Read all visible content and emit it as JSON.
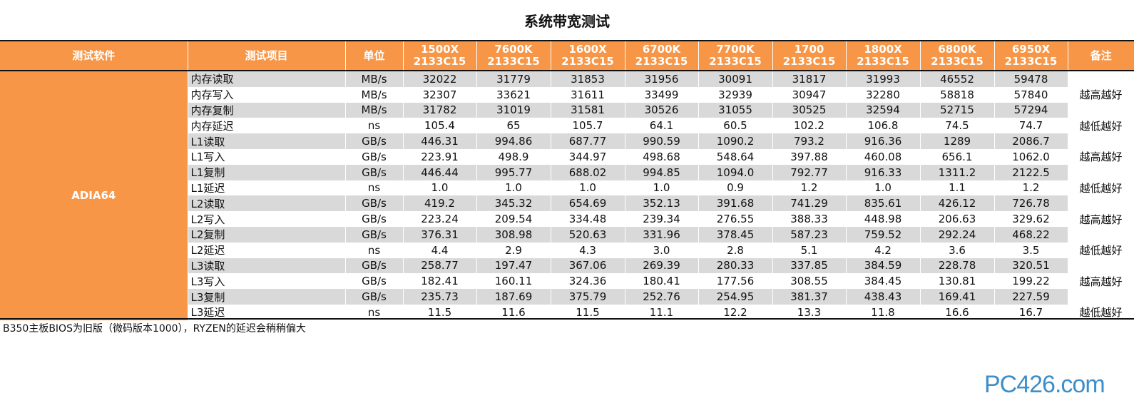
{
  "title": "系统带宽测试",
  "header": {
    "software": "测试软件",
    "item": "测试项目",
    "unit": "单位",
    "note": "备注",
    "cpus": [
      {
        "name": "1500X",
        "mem": "2133C15"
      },
      {
        "name": "7600K",
        "mem": "2133C15"
      },
      {
        "name": "1600X",
        "mem": "2133C15"
      },
      {
        "name": "6700K",
        "mem": "2133C15"
      },
      {
        "name": "7700K",
        "mem": "2133C15"
      },
      {
        "name": "1700",
        "mem": "2133C15"
      },
      {
        "name": "1800X",
        "mem": "2133C15"
      },
      {
        "name": "6800K",
        "mem": "2133C15"
      },
      {
        "name": "6950X",
        "mem": "2133C15"
      }
    ]
  },
  "software_name": "ADIA64",
  "rows": [
    {
      "item": "内存读取",
      "unit": "MB/s",
      "values": [
        "32022",
        "31779",
        "31853",
        "31956",
        "30091",
        "31817",
        "31993",
        "46552",
        "59478"
      ]
    },
    {
      "item": "内存写入",
      "unit": "MB/s",
      "values": [
        "32307",
        "33621",
        "31611",
        "33499",
        "32939",
        "30947",
        "32280",
        "58818",
        "57840"
      ]
    },
    {
      "item": "内存复制",
      "unit": "MB/s",
      "values": [
        "31782",
        "31019",
        "31581",
        "30526",
        "31055",
        "30525",
        "32594",
        "52715",
        "57294"
      ]
    },
    {
      "item": "内存延迟",
      "unit": "ns",
      "values": [
        "105.4",
        "65",
        "105.7",
        "64.1",
        "60.5",
        "102.2",
        "106.8",
        "74.5",
        "74.7"
      ]
    },
    {
      "item": "L1读取",
      "unit": "GB/s",
      "values": [
        "446.31",
        "994.86",
        "687.77",
        "990.59",
        "1090.2",
        "793.2",
        "916.36",
        "1289",
        "2086.7"
      ]
    },
    {
      "item": "L1写入",
      "unit": "GB/s",
      "values": [
        "223.91",
        "498.9",
        "344.97",
        "498.68",
        "548.64",
        "397.88",
        "460.08",
        "656.1",
        "1062.0"
      ]
    },
    {
      "item": "L1复制",
      "unit": "GB/s",
      "values": [
        "446.44",
        "995.77",
        "688.02",
        "994.85",
        "1094.0",
        "792.77",
        "916.33",
        "1311.2",
        "2122.5"
      ]
    },
    {
      "item": "L1延迟",
      "unit": "ns",
      "values": [
        "1.0",
        "1.0",
        "1.0",
        "1.0",
        "0.9",
        "1.2",
        "1.0",
        "1.1",
        "1.2"
      ]
    },
    {
      "item": "L2读取",
      "unit": "GB/s",
      "values": [
        "419.2",
        "345.32",
        "654.69",
        "352.13",
        "391.68",
        "741.29",
        "835.61",
        "426.12",
        "726.78"
      ]
    },
    {
      "item": "L2写入",
      "unit": "GB/s",
      "values": [
        "223.24",
        "209.54",
        "334.48",
        "239.34",
        "276.55",
        "388.33",
        "448.98",
        "206.63",
        "329.62"
      ]
    },
    {
      "item": "L2复制",
      "unit": "GB/s",
      "values": [
        "376.31",
        "308.98",
        "520.63",
        "331.96",
        "378.45",
        "587.23",
        "759.52",
        "292.24",
        "468.22"
      ]
    },
    {
      "item": "L2延迟",
      "unit": "ns",
      "values": [
        "4.4",
        "2.9",
        "4.3",
        "3.0",
        "2.8",
        "5.1",
        "4.2",
        "3.6",
        "3.5"
      ]
    },
    {
      "item": "L3读取",
      "unit": "GB/s",
      "values": [
        "258.77",
        "197.47",
        "367.06",
        "269.39",
        "280.33",
        "337.85",
        "384.59",
        "228.78",
        "320.51"
      ]
    },
    {
      "item": "L3写入",
      "unit": "GB/s",
      "values": [
        "182.41",
        "160.11",
        "324.36",
        "180.41",
        "177.56",
        "308.55",
        "384.45",
        "130.81",
        "199.22"
      ]
    },
    {
      "item": "L3复制",
      "unit": "GB/s",
      "values": [
        "235.73",
        "187.69",
        "375.79",
        "252.76",
        "254.95",
        "381.37",
        "438.43",
        "169.41",
        "227.59"
      ]
    },
    {
      "item": "L3延迟",
      "unit": "ns",
      "values": [
        "11.5",
        "11.6",
        "11.5",
        "11.1",
        "12.2",
        "13.3",
        "11.8",
        "16.6",
        "16.7"
      ]
    }
  ],
  "notes": {
    "higher_better": "越高越好",
    "lower_better": "越低越好"
  },
  "footnote": "B350主板BIOS为旧版（微码版本1000），RYZEN的延迟会稍稍偏大",
  "watermark": "PC426.com",
  "colors": {
    "header_bg": "#f79646",
    "stripe": "#d9d9d9",
    "logo": "#3d8ec9"
  }
}
